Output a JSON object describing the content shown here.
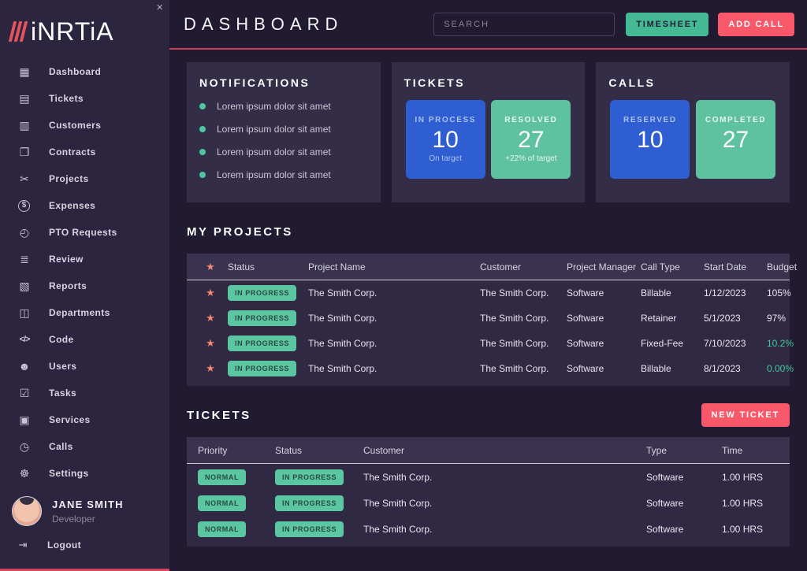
{
  "colors": {
    "accent_red": "#f9576a",
    "accent_teal": "#45b894",
    "card_blue": "#2f5ed2",
    "card_teal": "#5ec2a1",
    "header_rule_red": "#c9425a",
    "notification_dot": "#4ec7a0",
    "budget_highlight": "#45c79c"
  },
  "sidebar": {
    "close_icon": "×",
    "logo_text": "iNRTiA",
    "items": [
      {
        "label": "Dashboard",
        "icon": "▦"
      },
      {
        "label": "Tickets",
        "icon": "▤"
      },
      {
        "label": "Customers",
        "icon": "▥"
      },
      {
        "label": "Contracts",
        "icon": "❐"
      },
      {
        "label": "Projects",
        "icon": "✂"
      },
      {
        "label": "Expenses",
        "icon": "$"
      },
      {
        "label": "PTO Requests",
        "icon": "◴"
      },
      {
        "label": "Review",
        "icon": "≣"
      },
      {
        "label": "Reports",
        "icon": "▧"
      },
      {
        "label": "Departments",
        "icon": "◫"
      },
      {
        "label": "Code",
        "icon": "</>"
      },
      {
        "label": "Users",
        "icon": "☻"
      },
      {
        "label": "Tasks",
        "icon": "☑"
      },
      {
        "label": "Services",
        "icon": "▣"
      },
      {
        "label": "Calls",
        "icon": "◷"
      },
      {
        "label": "Settings",
        "icon": "☸"
      }
    ],
    "user": {
      "name": "JANE SMITH",
      "role": "Developer"
    },
    "logout": {
      "label": "Logout",
      "icon": "⇥"
    }
  },
  "header": {
    "title": "DASHBOARD",
    "search_placeholder": "SEARCH",
    "timesheet_label": "TIMESHEET",
    "add_call_label": "ADD CALL"
  },
  "panels": {
    "notifications": {
      "title": "NOTIFICATIONS",
      "items": [
        "Lorem ipsum dolor sit amet",
        "Lorem ipsum dolor sit amet",
        "Lorem ipsum dolor sit amet",
        "Lorem ipsum dolor sit amet"
      ]
    },
    "tickets": {
      "title": "TICKETS",
      "cards": [
        {
          "label": "IN PROCESS",
          "value": "10",
          "sub": "On target",
          "bg": "#2f5ed2",
          "label_color": "#a9c2f0"
        },
        {
          "label": "RESOLVED",
          "value": "27",
          "sub": "+22% of target",
          "bg": "#5ec2a1",
          "label_color": "#e6f6ef"
        }
      ]
    },
    "calls": {
      "title": "CALLS",
      "cards": [
        {
          "label": "RESERVED",
          "value": "10",
          "sub": "",
          "bg": "#2f5ed2",
          "label_color": "#a9c2f0"
        },
        {
          "label": "COMPLETED",
          "value": "27",
          "sub": "",
          "bg": "#5ec2a1",
          "label_color": "#e6f6ef"
        }
      ]
    }
  },
  "projects": {
    "title": "MY PROJECTS",
    "star_icon": "★",
    "columns": [
      "Status",
      "Project Name",
      "Customer",
      "Project Manager",
      "Call Type",
      "Start Date",
      "Budget"
    ],
    "rows": [
      {
        "status": "IN PROGRESS",
        "project_name": "The Smith Corp.",
        "customer": "The Smith Corp.",
        "project_manager": "Software",
        "call_type": "Billable",
        "start_date": "1/12/2023",
        "budget": "105%",
        "budget_color": "#e9e5f0"
      },
      {
        "status": "IN PROGRESS",
        "project_name": "The Smith Corp.",
        "customer": "The Smith Corp.",
        "project_manager": "Software",
        "call_type": "Retainer",
        "start_date": "5/1/2023",
        "budget": "97%",
        "budget_color": "#e9e5f0"
      },
      {
        "status": "IN PROGRESS",
        "project_name": "The Smith Corp.",
        "customer": "The Smith Corp.",
        "project_manager": "Software",
        "call_type": "Fixed-Fee",
        "start_date": "7/10/2023",
        "budget": "10.2%",
        "budget_color": "#45c79c"
      },
      {
        "status": "IN PROGRESS",
        "project_name": "The Smith Corp.",
        "customer": "The Smith Corp.",
        "project_manager": "Software",
        "call_type": "Billable",
        "start_date": "8/1/2023",
        "budget": "0.00%",
        "budget_color": "#45c79c"
      }
    ]
  },
  "tickets_section": {
    "title": "TICKETS",
    "new_ticket_label": "NEW TICKET",
    "columns": [
      "Priority",
      "Status",
      "Customer",
      "Type",
      "Time"
    ],
    "rows": [
      {
        "priority": "NORMAL",
        "status": "IN PROGRESS",
        "customer": "The Smith Corp.",
        "type": "Software",
        "time": "1.00 HRS"
      },
      {
        "priority": "NORMAL",
        "status": "IN PROGRESS",
        "customer": "The Smith Corp.",
        "type": "Software",
        "time": "1.00 HRS"
      },
      {
        "priority": "NORMAL",
        "status": "IN PROGRESS",
        "customer": "The Smith Corp.",
        "type": "Software",
        "time": "1.00 HRS"
      }
    ]
  }
}
